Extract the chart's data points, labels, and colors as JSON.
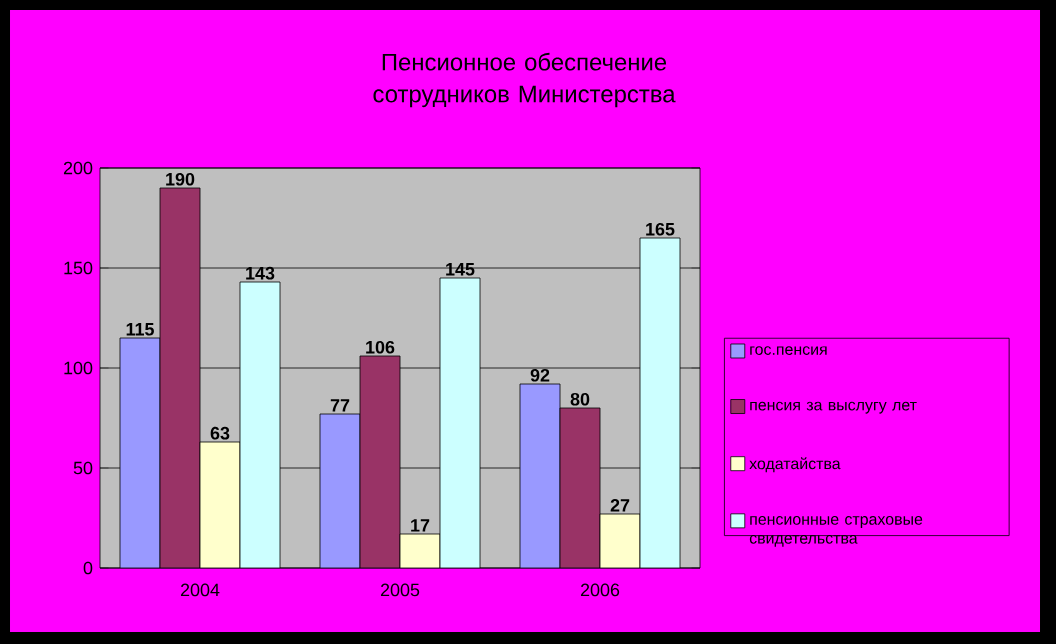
{
  "chart_data": {
    "type": "bar",
    "title": "Пенсионное обеспечение сотрудников Министерства",
    "categories": [
      "2004",
      "2005",
      "2006"
    ],
    "series": [
      {
        "name": "гос.пенсия",
        "color": "#9999ff",
        "values": [
          115,
          77,
          92
        ]
      },
      {
        "name": "пенсия за выслугу лет",
        "color": "#993366",
        "values": [
          190,
          106,
          80
        ]
      },
      {
        "name": "ходатайства",
        "color": "#ffffcc",
        "values": [
          63,
          17,
          27
        ]
      },
      {
        "name": "пенсионные страховые свидетельства",
        "color": "#ccffff",
        "values": [
          143,
          145,
          165
        ]
      }
    ],
    "ylim": [
      0,
      200
    ],
    "yticks": [
      0,
      50,
      100,
      150,
      200
    ],
    "grid": "y",
    "legend": "right",
    "data_labels": true
  }
}
